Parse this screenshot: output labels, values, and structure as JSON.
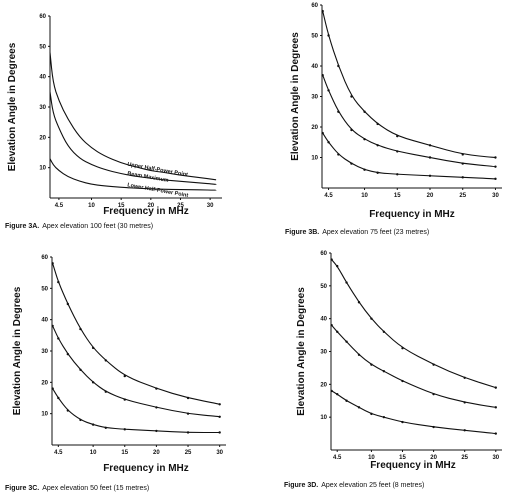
{
  "chart_data": [
    {
      "type": "line",
      "caption_label": "Figure 3A.",
      "caption_text": "Apex elevation 100 feet (30 metres)",
      "xlabel": "Frequency in MHz",
      "ylabel": "Elevation Angle in Degrees",
      "xlim": [
        3,
        32
      ],
      "ylim": [
        0,
        60
      ],
      "xticks": [
        "4.5",
        "10",
        "15",
        "20",
        "25",
        "30"
      ],
      "yticks": [
        "10",
        "20",
        "30",
        "40",
        "50",
        "60"
      ],
      "markers": false,
      "series": [
        {
          "name": "Upper Half-Power Point",
          "x": [
            3,
            3.5,
            4.5,
            6,
            8,
            10,
            12,
            15,
            18,
            20,
            22,
            25,
            28,
            31
          ],
          "y": [
            48,
            38,
            32,
            26,
            20,
            16.5,
            14,
            11.5,
            10,
            9,
            8.5,
            7.5,
            6.8,
            6
          ]
        },
        {
          "name": "Beam Maximum",
          "x": [
            3,
            3.5,
            4.5,
            6,
            8,
            10,
            12,
            15,
            18,
            20,
            22,
            25,
            28,
            31
          ],
          "y": [
            35,
            28,
            23,
            17,
            13,
            11,
            9.5,
            8,
            7,
            6.5,
            6,
            5.5,
            5,
            4.5
          ]
        },
        {
          "name": "Lower Half-Power Point",
          "x": [
            3,
            3.5,
            4.5,
            6,
            8,
            10,
            12,
            15,
            18,
            20,
            22,
            25,
            28,
            31
          ],
          "y": [
            13,
            11,
            9,
            7,
            5.5,
            4.5,
            4,
            3.5,
            3.2,
            3,
            2.9,
            2.8,
            2.7,
            2.6
          ]
        }
      ]
    },
    {
      "type": "line",
      "caption_label": "Figure 3B.",
      "caption_text": "Apex elevation 75 feet (23 metres)",
      "xlabel": "Frequency in MHz",
      "ylabel": "Elevation Angle in Degrees",
      "xlim": [
        3.5,
        31
      ],
      "ylim": [
        0,
        60
      ],
      "xticks": [
        "4.5",
        "10",
        "15",
        "20",
        "25",
        "30"
      ],
      "yticks": [
        "10",
        "20",
        "30",
        "40",
        "50",
        "60"
      ],
      "markers": true,
      "series": [
        {
          "x": [
            3.6,
            4.5,
            6,
            8,
            10,
            12,
            15,
            20,
            25,
            30
          ],
          "y": [
            58,
            50,
            40,
            30,
            25,
            21,
            17,
            14,
            11,
            10
          ]
        },
        {
          "x": [
            3.6,
            4.5,
            6,
            8,
            10,
            12,
            15,
            20,
            25,
            30
          ],
          "y": [
            37,
            32,
            25,
            19,
            16,
            14,
            12,
            10,
            8,
            7
          ]
        },
        {
          "x": [
            3.6,
            4.5,
            6,
            8,
            10,
            12,
            15,
            20,
            25,
            30
          ],
          "y": [
            18,
            15,
            11,
            8,
            6,
            5,
            4.5,
            4,
            3.5,
            3
          ]
        }
      ]
    },
    {
      "type": "line",
      "caption_label": "Figure 3C.",
      "caption_text": "Apex elevation 50 feet (15 metres)",
      "xlabel": "Frequency in MHz",
      "ylabel": "Elevation Angle in Degrees",
      "xlim": [
        3.5,
        31
      ],
      "ylim": [
        0,
        60
      ],
      "xticks": [
        "4.5",
        "10",
        "15",
        "20",
        "25",
        "30"
      ],
      "yticks": [
        "10",
        "20",
        "30",
        "40",
        "50",
        "60"
      ],
      "markers": true,
      "series": [
        {
          "x": [
            3.6,
            4.5,
            6,
            8,
            10,
            12,
            15,
            20,
            25,
            30
          ],
          "y": [
            58,
            52,
            45,
            37,
            31,
            27,
            22,
            18,
            15,
            13
          ]
        },
        {
          "x": [
            3.6,
            4.5,
            6,
            8,
            10,
            12,
            15,
            20,
            25,
            30
          ],
          "y": [
            38,
            34,
            29,
            24,
            20,
            17,
            14.5,
            12,
            10,
            9
          ]
        },
        {
          "x": [
            3.6,
            4.5,
            6,
            8,
            10,
            12,
            15,
            20,
            25,
            30
          ],
          "y": [
            18,
            15,
            11,
            8,
            6.5,
            5.5,
            5,
            4.5,
            4,
            4
          ]
        }
      ]
    },
    {
      "type": "line",
      "caption_label": "Figure 3D.",
      "caption_text": "Apex elevation 25 feet (8 metres)",
      "xlabel": "Frequency in MHz",
      "ylabel": "Elevation Angle in Degrees",
      "xlim": [
        3.5,
        31
      ],
      "ylim": [
        0,
        60
      ],
      "xticks": [
        "4.5",
        "10",
        "15",
        "20",
        "25",
        "30"
      ],
      "yticks": [
        "10",
        "20",
        "30",
        "40",
        "50",
        "60"
      ],
      "markers": true,
      "series": [
        {
          "x": [
            3.6,
            4.5,
            6,
            8,
            10,
            12,
            15,
            20,
            25,
            30
          ],
          "y": [
            58,
            56,
            51,
            45,
            40,
            36,
            31,
            26,
            22,
            19
          ]
        },
        {
          "x": [
            3.6,
            4.5,
            6,
            8,
            10,
            12,
            15,
            20,
            25,
            30
          ],
          "y": [
            38,
            36,
            33,
            29,
            26,
            24,
            21,
            17,
            14.5,
            13
          ]
        },
        {
          "x": [
            3.6,
            4.5,
            6,
            8,
            10,
            12,
            15,
            20,
            25,
            30
          ],
          "y": [
            18,
            17,
            15,
            13,
            11,
            10,
            8.5,
            7,
            6,
            5
          ]
        }
      ]
    }
  ]
}
